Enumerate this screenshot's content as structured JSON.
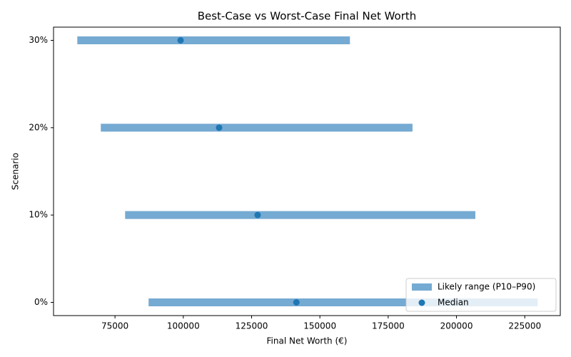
{
  "chart_data": {
    "type": "range",
    "title": "Best-Case vs Worst-Case Final Net Worth",
    "x_label": "Final Net Worth (€)",
    "y_label": "Scenario",
    "categories": [
      "0%",
      "10%",
      "20%",
      "30%"
    ],
    "series": [
      {
        "name": "Likely range (P10–P90)",
        "color": "#75aad2",
        "low": [
          87300,
          78700,
          69800,
          61200
        ],
        "high": [
          229700,
          206900,
          183900,
          161000
        ]
      },
      {
        "name": "Median",
        "color": "#1f77b4",
        "values": [
          141400,
          127200,
          113100,
          99000
        ]
      }
    ],
    "xlim": [
      52500,
      238000
    ],
    "xticks": [
      75000,
      100000,
      125000,
      150000,
      175000,
      200000,
      225000
    ],
    "legend": "lower right"
  }
}
